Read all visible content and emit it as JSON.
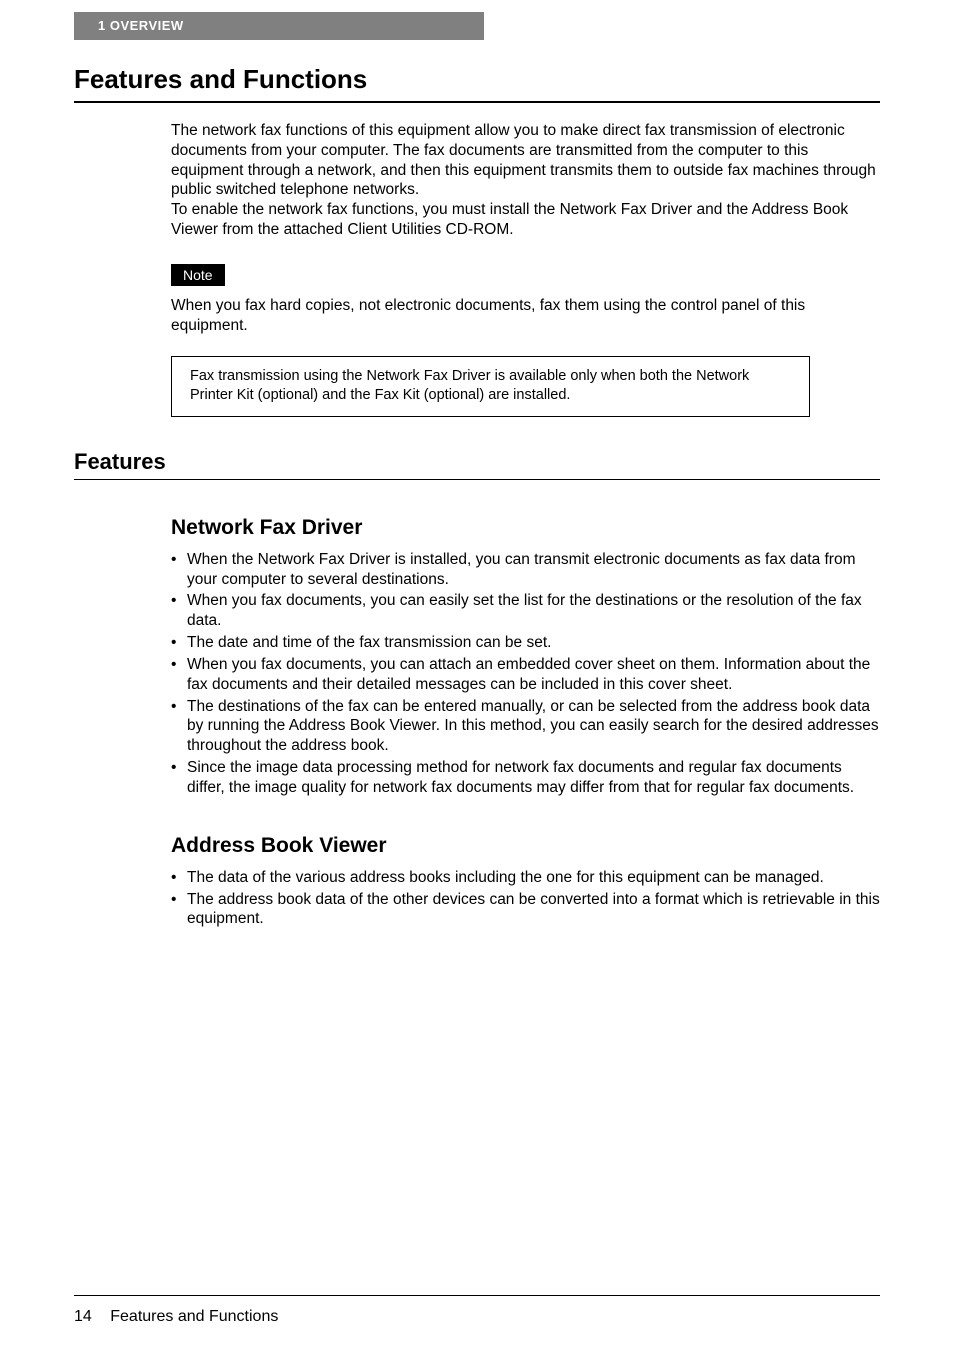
{
  "header": {
    "chapter_label": "1   OVERVIEW"
  },
  "headings": {
    "main": "Features and Functions",
    "section_features": "Features",
    "sub_nfd": "Network Fax Driver",
    "sub_abv": "Address Book Viewer"
  },
  "intro": {
    "p1": "The network fax functions of this equipment allow you to make direct fax transmission of electronic documents from your computer. The fax documents are transmitted from the computer to this equipment through a network, and then this equipment transmits them to outside fax machines through public switched telephone networks.",
    "p2": "To enable the network fax functions, you must install the Network Fax Driver and the Address Book Viewer from the attached Client Utilities CD-ROM."
  },
  "note": {
    "label": "Note",
    "text": "When you fax hard copies, not electronic documents, fax them using the control panel of this equipment."
  },
  "info_box": "Fax transmission using the Network Fax Driver is available only when both the Network Printer Kit (optional) and the Fax Kit (optional) are installed.",
  "nfd_bullets": [
    "When the Network Fax Driver is installed, you can transmit electronic documents as fax data from your computer to several destinations.",
    "When you fax documents, you can easily set the list for the destinations or the resolution of the fax data.",
    "The date and time of the fax transmission can be set.",
    "When you fax documents, you can attach an embedded cover sheet on them. Information about the fax documents and their detailed messages can be included in this cover sheet.",
    "The destinations of the fax can be entered manually, or can be selected from the address book data by running the Address Book Viewer. In this method, you can easily search for the desired addresses throughout the address book.",
    "Since the image data processing method for network fax documents and regular fax documents differ, the image quality for network fax documents may differ from that for regular fax documents."
  ],
  "abv_bullets": [
    "The data of the various address books including the one for this equipment can be managed.",
    "The address book data of the other devices can be converted into a format which is retrievable in this equipment."
  ],
  "footer": {
    "page_number": "14",
    "title": "Features and Functions"
  }
}
